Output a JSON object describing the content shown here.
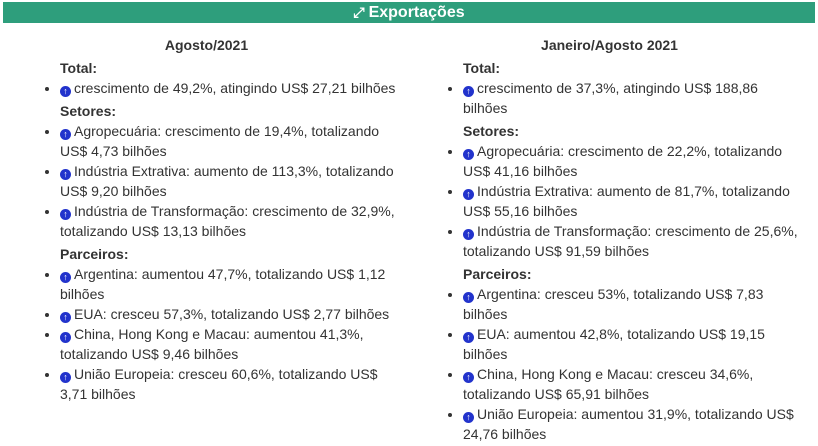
{
  "header": {
    "title": "Exportações",
    "icon": "expand-icon"
  },
  "columns": [
    {
      "title": "Agosto/2021",
      "sections": [
        {
          "label": "Total:",
          "items": [
            "crescimento de 49,2%, atingindo US$ 27,21 bilhões"
          ]
        },
        {
          "label": "Setores:",
          "items": [
            "Agropecuária: crescimento de 19,4%, totalizando US$ 4,73 bilhões",
            "Indústria Extrativa: aumento de 113,3%, totalizando US$ 9,20 bilhões",
            "Indústria de Transformação: crescimento de 32,9%, totalizando US$ 13,13 bilhões"
          ]
        },
        {
          "label": "Parceiros:",
          "items": [
            "Argentina: aumentou 47,7%, totalizando US$ 1,12 bilhões",
            "EUA: cresceu 57,3%, totalizando US$ 2,77 bilhões",
            "China, Hong Kong e Macau: aumentou 41,3%, totalizando US$ 9,46 bilhões",
            "União Europeia: cresceu 60,6%, totalizando US$ 3,71 bilhões"
          ]
        }
      ]
    },
    {
      "title": "Janeiro/Agosto 2021",
      "sections": [
        {
          "label": "Total:",
          "items": [
            "crescimento de 37,3%, atingindo US$ 188,86 bilhões"
          ]
        },
        {
          "label": "Setores:",
          "items": [
            "Agropecuária: crescimento de 22,2%, totalizando US$ 41,16 bilhões",
            "Indústria Extrativa: aumento de 81,7%, totalizando US$ 55,16 bilhões",
            "Indústria de Transformação: crescimento de 25,6%, totalizando US$ 91,59 bilhões"
          ]
        },
        {
          "label": "Parceiros:",
          "items": [
            "Argentina: cresceu 53%, totalizando US$ 7,83 bilhões",
            "EUA: aumentou 42,8%, totalizando US$ 19,15 bilhões",
            "China, Hong Kong e Macau: cresceu 34,6%, totalizando US$ 65,91 bilhões",
            "União Europeia: aumentou 31,9%, totalizando US$ 24,76 bilhões"
          ]
        }
      ]
    }
  ]
}
